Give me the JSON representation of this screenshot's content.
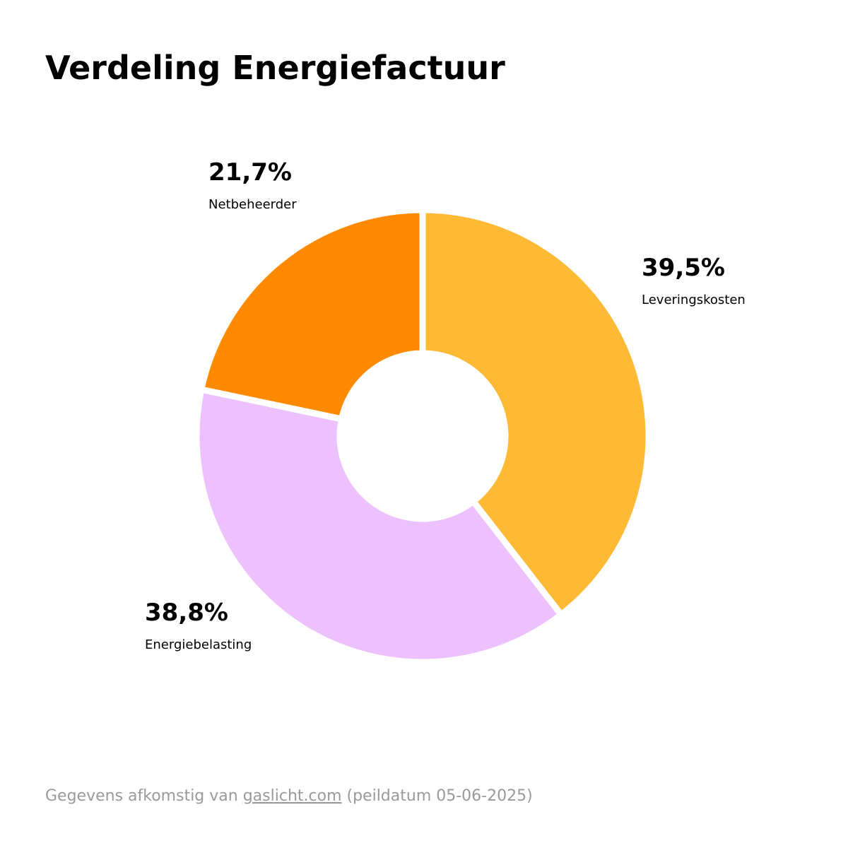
{
  "chart_data": {
    "type": "donut",
    "title": "Verdeling Energiefactuur",
    "categories": [
      "Leveringskosten",
      "Energiebelasting",
      "Netbeheerder"
    ],
    "values": [
      39.5,
      38.8,
      21.7
    ],
    "value_labels": [
      "39,5%",
      "38,8%",
      "21,7%"
    ],
    "colors": [
      "#ffba35",
      "#edc1fd",
      "#ff8a00"
    ],
    "source": {
      "prefix": "Gegevens afkomstig van",
      "link": "gaslicht.com",
      "suffix": "(peildatum 05-06-2025)"
    }
  }
}
